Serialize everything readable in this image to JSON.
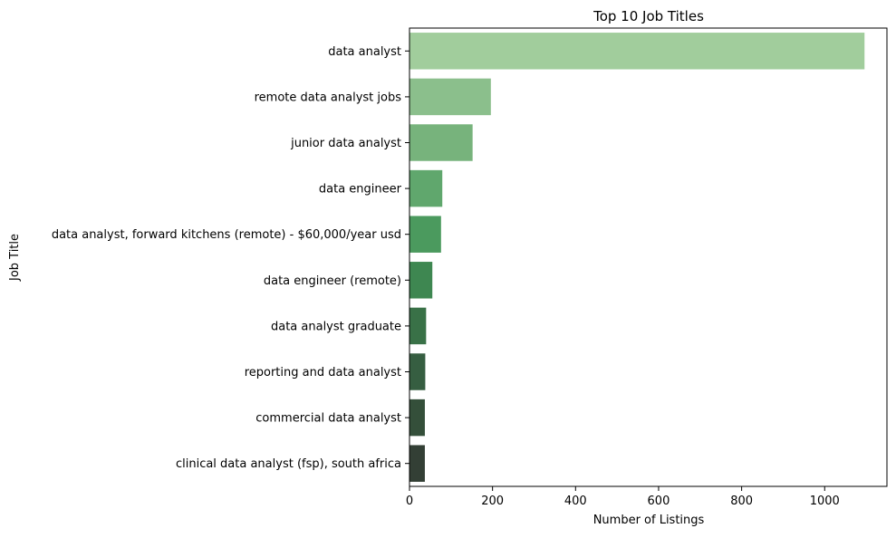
{
  "chart_data": {
    "type": "bar",
    "orientation": "horizontal",
    "title": "Top 10 Job Titles",
    "xlabel": "Number of Listings",
    "ylabel": "Job Title",
    "xlim": [
      0,
      1150
    ],
    "xticks": [
      0,
      200,
      400,
      600,
      800,
      1000
    ],
    "grid": false,
    "categories": [
      "data analyst",
      "remote data analyst jobs",
      "junior data analyst",
      "data engineer",
      "data analyst, forward kitchens (remote) - $60,000/year usd",
      "data engineer (remote)",
      "data analyst graduate",
      "reporting and data analyst",
      "commercial data analyst",
      "clinical data analyst (fsp), south africa"
    ],
    "values": [
      1096,
      196,
      152,
      79,
      76,
      55,
      40,
      38,
      37,
      37
    ],
    "colors": [
      "#a1cd9c",
      "#8bbf8c",
      "#77b37c",
      "#60a76d",
      "#4b9a5e",
      "#3e8751",
      "#397147",
      "#365e41",
      "#344f3a",
      "#333f35"
    ]
  }
}
